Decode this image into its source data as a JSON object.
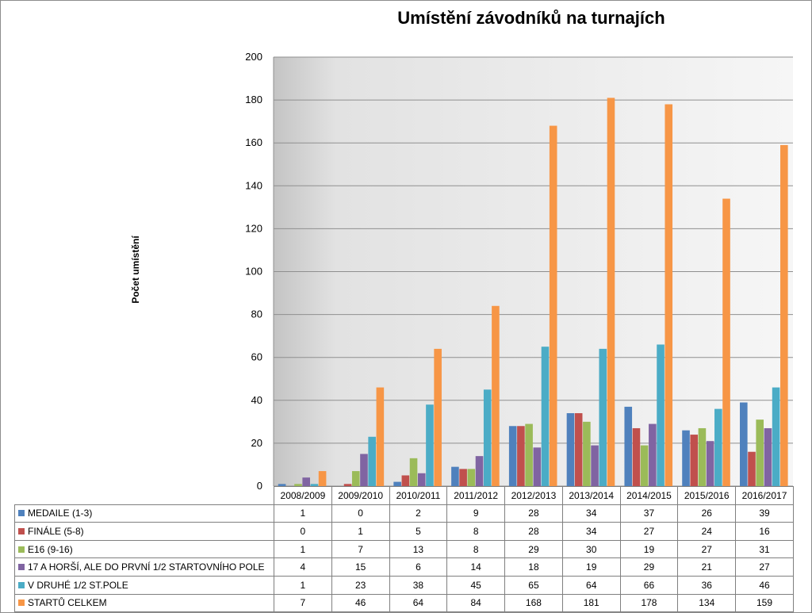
{
  "chart_data": {
    "type": "bar",
    "title": "Umístění závodníků na turnajích",
    "ylabel": "Počet umístění",
    "xlabel": "",
    "ylim": [
      0,
      200
    ],
    "yticks": [
      0,
      20,
      40,
      60,
      80,
      100,
      120,
      140,
      160,
      180,
      200
    ],
    "grid": true,
    "legend": "table-below",
    "categories": [
      "2008/2009",
      "2009/2010",
      "2010/2011",
      "2011/2012",
      "2012/2013",
      "2013/2014",
      "2014/2015",
      "2015/2016",
      "2016/2017"
    ],
    "series": [
      {
        "name": "MEDAILE (1-3)",
        "color": "#4f81bd",
        "values": [
          1,
          0,
          2,
          9,
          28,
          34,
          37,
          26,
          39
        ]
      },
      {
        "name": "FINÁLE (5-8)",
        "color": "#c0504d",
        "values": [
          0,
          1,
          5,
          8,
          28,
          34,
          27,
          24,
          16
        ]
      },
      {
        "name": "E16 (9-16)",
        "color": "#9bbb59",
        "values": [
          1,
          7,
          13,
          8,
          29,
          30,
          19,
          27,
          31
        ]
      },
      {
        "name": "17 A HORŠÍ, ALE DO PRVNÍ 1/2 STARTOVNÍHO POLE",
        "color": "#8064a2",
        "values": [
          4,
          15,
          6,
          14,
          18,
          19,
          29,
          21,
          27
        ]
      },
      {
        "name": "V DRUHÉ 1/2 ST.POLE",
        "color": "#4bacc6",
        "values": [
          1,
          23,
          38,
          45,
          65,
          64,
          66,
          36,
          46
        ]
      },
      {
        "name": "STARTŮ CELKEM",
        "color": "#f79646",
        "values": [
          7,
          46,
          64,
          84,
          168,
          181,
          178,
          134,
          159
        ]
      }
    ]
  }
}
